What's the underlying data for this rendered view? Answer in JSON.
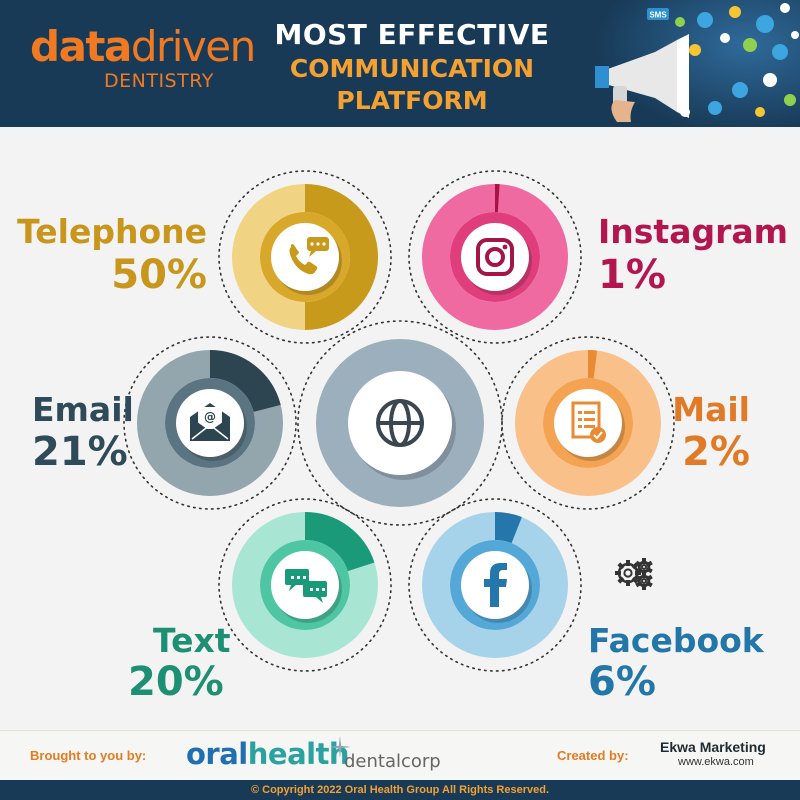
{
  "header": {
    "logo_bold": "data",
    "logo_light": "driven",
    "logo_sub": "DENTISTRY",
    "title_line1": "MOST EFFECTIVE",
    "title_line2": "COMMUNICATION",
    "title_line3": "PLATFORM",
    "sms_badge": "SMS"
  },
  "chart_data": {
    "type": "pie",
    "title": "MOST EFFECTIVE COMMUNICATION PLATFORM",
    "categories": [
      "Telephone",
      "Instagram",
      "Email",
      "Mail",
      "Text",
      "Facebook"
    ],
    "values": [
      50,
      1,
      21,
      2,
      20,
      6
    ],
    "labels": [
      "50%",
      "1%",
      "21%",
      "2%",
      "20%",
      "6%"
    ],
    "icons": [
      "telephone-chat-icon",
      "instagram-icon",
      "email-icon",
      "mail-document-icon",
      "text-chat-icon",
      "facebook-icon"
    ],
    "center_icon": "globe-icon",
    "colors": {
      "Telephone": {
        "label": "#c7961a",
        "light": "#f0d484",
        "dark": "#c79a1b",
        "face": "#d8a82a"
      },
      "Instagram": {
        "label": "#b3164f",
        "light": "#f06aa2",
        "dark": "#a31447",
        "face": "#e03d7d"
      },
      "Email": {
        "label": "#2f4a58",
        "light": "#93a6ae",
        "dark": "#2d4451",
        "face": "#5a7482"
      },
      "Mail": {
        "label": "#e07a27",
        "light": "#f9c08a",
        "dark": "#ea8a32",
        "face": "#f3a352"
      },
      "Text": {
        "label": "#1d8f73",
        "light": "#a9e5d3",
        "dark": "#1b9a7a",
        "face": "#4fc6a3"
      },
      "Facebook": {
        "label": "#2277a8",
        "light": "#a7d3ea",
        "dark": "#2476ab",
        "face": "#53a8d8"
      },
      "center": {
        "ring": "#9bafbd",
        "icon": "#3a4750"
      }
    }
  },
  "footer": {
    "brought_label": "Brought to you by:",
    "oralhealth_a": "oral",
    "oralhealth_b": "health",
    "dentalcorp": "dentalcorp",
    "created_label": "Created by:",
    "ekwa_name": "Ekwa Marketing",
    "ekwa_url": "www.ekwa.com",
    "copyright": "© Copyright 2022 Oral Health Group All Rights Reserved."
  }
}
